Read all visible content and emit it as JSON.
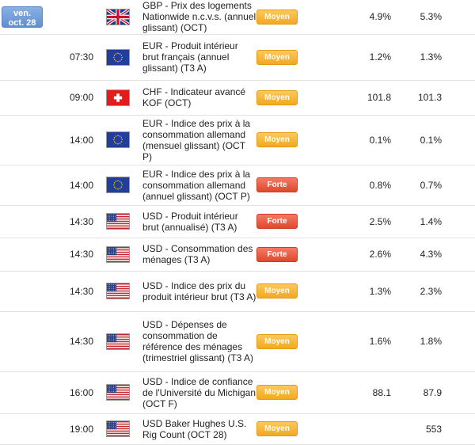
{
  "date": {
    "day": "ven.",
    "month_day": "oct. 28"
  },
  "colors": {
    "date_badge": "#6f9bd8",
    "moyen": "#f5b534",
    "forte": "#e85a42"
  },
  "rows": [
    {
      "time": "",
      "flag": "gbp-flag-icon",
      "title": "GBP - Prix des logements Nationwide n.c.v.s. (annuel glissant) (OCT)",
      "importance": "Moyen",
      "actual": "4.9%",
      "forecast": "5.3%"
    },
    {
      "time": "07:30",
      "flag": "eur-flag-icon",
      "title": "EUR - Produit intérieur brut français (annuel glissant) (T3 A)",
      "importance": "Moyen",
      "actual": "1.2%",
      "forecast": "1.3%"
    },
    {
      "time": "09:00",
      "flag": "chf-flag-icon",
      "title": "CHF - Indicateur avancé KOF (OCT)",
      "importance": "Moyen",
      "actual": "101.8",
      "forecast": "101.3"
    },
    {
      "time": "14:00",
      "flag": "eur-flag-icon",
      "title": "EUR - Indice des prix à la consommation allemand (mensuel glissant) (OCT P)",
      "importance": "Moyen",
      "actual": "0.1%",
      "forecast": "0.1%"
    },
    {
      "time": "14:00",
      "flag": "eur-flag-icon",
      "title": "EUR - Indice des prix à la consommation allemand (annuel glissant) (OCT P)",
      "importance": "Forte",
      "actual": "0.8%",
      "forecast": "0.7%"
    },
    {
      "time": "14:30",
      "flag": "usd-flag-icon",
      "title": "USD - Produit intérieur brut (annualisé) (T3 A)",
      "importance": "Forte",
      "actual": "2.5%",
      "forecast": "1.4%"
    },
    {
      "time": "14:30",
      "flag": "usd-flag-icon",
      "title": "USD - Consommation des ménages (T3 A)",
      "importance": "Forte",
      "actual": "2.6%",
      "forecast": "4.3%"
    },
    {
      "time": "14:30",
      "flag": "usd-flag-icon",
      "title": "USD - Indice des prix du produit intérieur brut (T3 A)",
      "importance": "Moyen",
      "actual": "1.3%",
      "forecast": "2.3%"
    },
    {
      "time": "14:30",
      "flag": "usd-flag-icon",
      "title": "USD - Dépenses de consommation de référence des ménages (trimestriel glissant) (T3 A)",
      "importance": "Moyen",
      "actual": "1.6%",
      "forecast": "1.8%"
    },
    {
      "time": "16:00",
      "flag": "usd-flag-icon",
      "title": "USD - Indice de confiance de l'Université du Michigan (OCT F)",
      "importance": "Moyen",
      "actual": "88.1",
      "forecast": "87.9"
    },
    {
      "time": "19:00",
      "flag": "usd-flag-icon",
      "title": "USD Baker Hughes U.S. Rig Count (OCT 28)",
      "importance": "Moyen",
      "actual": "",
      "forecast": "553"
    }
  ]
}
